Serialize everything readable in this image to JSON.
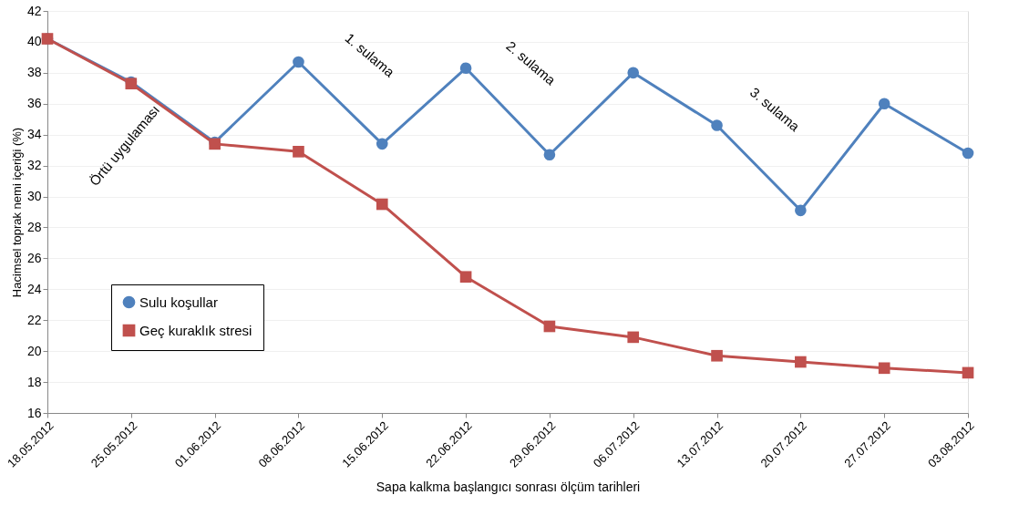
{
  "chart_data": {
    "type": "line",
    "xlabel": "Sapa kalkma  başlangıcı sonrası ölçüm tarihleri",
    "ylabel": "Hacimsel toprak nemi  içeriği (%)",
    "categories": [
      "18.05.2012",
      "25.05.2012",
      "01.06.2012",
      "08.06.2012",
      "15.06.2012",
      "22.06.2012",
      "29.06.2012",
      "06.07.2012",
      "13.07.2012",
      "20.07.2012",
      "27.07.2012",
      "03.08.2012"
    ],
    "series": [
      {
        "name": "Sulu koşullar",
        "color": "#4f81bd",
        "marker": "circle",
        "values": [
          40.2,
          37.4,
          33.5,
          38.7,
          33.4,
          38.3,
          32.7,
          38.0,
          34.6,
          29.1,
          36.0,
          32.8
        ]
      },
      {
        "name": "Geç kuraklık stresi",
        "color": "#c0504d",
        "marker": "square",
        "values": [
          40.2,
          37.3,
          33.4,
          32.9,
          29.5,
          24.8,
          21.6,
          20.9,
          19.7,
          19.3,
          18.9,
          18.6
        ]
      }
    ],
    "ylim": [
      16,
      42
    ],
    "yticks": [
      16,
      18,
      20,
      22,
      24,
      26,
      28,
      30,
      32,
      34,
      36,
      38,
      40,
      42
    ],
    "grid": "y",
    "legend": "bottom left",
    "annotations": [
      "Örtü  uygulaması",
      "1. sulama",
      "2. sulama",
      "3. sulama"
    ]
  }
}
